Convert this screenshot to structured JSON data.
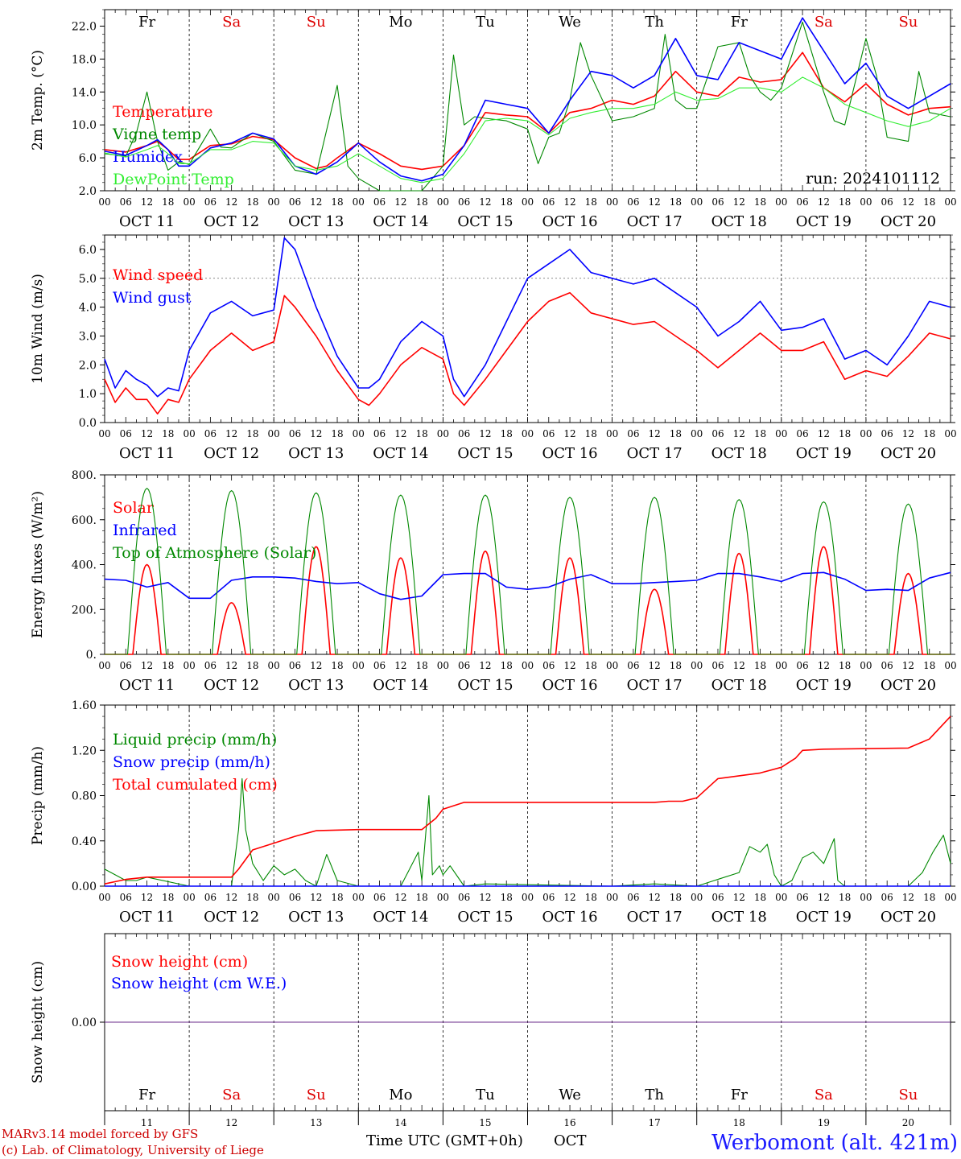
{
  "colors": {
    "red": "#ff0000",
    "green": "#008800",
    "blue": "#0000ff",
    "lightgreen": "#33ee33",
    "purple": "#6a2a8a",
    "weekend_day": "#dd0000",
    "weekday_day": "#000000"
  },
  "days_top": [
    "Fr",
    "Sa",
    "Su",
    "Mo",
    "Tu",
    "We",
    "Th",
    "Fr",
    "Sa",
    "Su"
  ],
  "weekend_flags": [
    false,
    true,
    true,
    false,
    false,
    false,
    false,
    false,
    true,
    true
  ],
  "hour_labels": [
    "00",
    "06",
    "12",
    "18"
  ],
  "last_hour_label": "00",
  "date_labels": [
    "OCT 11",
    "OCT 12",
    "OCT 13",
    "OCT 14",
    "OCT 15",
    "OCT 16",
    "OCT 17",
    "OCT 18",
    "OCT 19",
    "OCT 20"
  ],
  "bottom_day_numbers": [
    "11",
    "12",
    "13",
    "14",
    "15",
    "16",
    "17",
    "18",
    "19",
    "20"
  ],
  "run_label": "run: 2024101112",
  "footer": {
    "model_line": "MARv3.14 model forced by GFS",
    "lab_line": "(c) Lab. of Climatology, University of Liege",
    "time_axis_label": "Time UTC (GMT+0h)",
    "month_label": "OCT",
    "station": "Werbomont (alt. 421m)"
  },
  "chart_data": [
    {
      "type": "line",
      "panel": "temperature",
      "ylabel": "2m Temp. (°C)",
      "ylim": [
        2.0,
        24.0
      ],
      "yticks": [
        "2.0",
        "6.0",
        "10.0",
        "14.0",
        "18.0",
        "22.0"
      ],
      "x_unit": "hours since 2024-10-11 00 UTC",
      "xlim": [
        0,
        240
      ],
      "series": [
        {
          "name": "Temperature",
          "color": "red",
          "x": [
            0,
            6,
            12,
            15,
            18,
            21,
            24,
            30,
            36,
            42,
            48,
            54,
            60,
            63,
            66,
            72,
            78,
            84,
            90,
            96,
            102,
            108,
            114,
            120,
            126,
            132,
            138,
            144,
            150,
            156,
            162,
            168,
            174,
            180,
            186,
            192,
            198,
            204,
            210,
            216,
            222,
            228,
            234,
            240
          ],
          "values": [
            7.0,
            6.7,
            7.5,
            8.0,
            7.0,
            5.8,
            5.8,
            7.5,
            7.7,
            8.6,
            8.2,
            6.0,
            4.7,
            5.0,
            6.0,
            7.8,
            6.5,
            5.0,
            4.6,
            5.0,
            7.5,
            11.5,
            11.2,
            11.0,
            9.0,
            11.5,
            12.0,
            13.0,
            12.5,
            13.5,
            16.5,
            14.0,
            13.5,
            15.8,
            15.2,
            15.5,
            18.8,
            14.5,
            12.8,
            15.0,
            12.5,
            11.2,
            12.0,
            12.2
          ]
        },
        {
          "name": "Vigne temp",
          "color": "green",
          "x": [
            0,
            6,
            9,
            12,
            15,
            18,
            21,
            24,
            30,
            33,
            36,
            42,
            48,
            54,
            60,
            66,
            69,
            72,
            78,
            84,
            90,
            96,
            99,
            102,
            105,
            108,
            114,
            120,
            123,
            126,
            129,
            132,
            135,
            138,
            144,
            150,
            156,
            159,
            162,
            165,
            168,
            174,
            180,
            183,
            186,
            189,
            192,
            198,
            204,
            207,
            210,
            216,
            219,
            222,
            228,
            231,
            234,
            240
          ],
          "values": [
            6.5,
            6.2,
            9.0,
            14.0,
            8.0,
            4.5,
            5.5,
            5.2,
            9.5,
            7.3,
            7.2,
            9.0,
            8.0,
            4.5,
            4.0,
            14.8,
            5.0,
            3.5,
            2.0,
            1.5,
            2.0,
            5.0,
            18.5,
            10.0,
            11.0,
            10.8,
            10.5,
            9.5,
            5.3,
            8.5,
            9.0,
            13.0,
            20.0,
            16.0,
            10.5,
            11.0,
            12.0,
            21.0,
            13.0,
            12.0,
            12.0,
            19.5,
            20.0,
            16.0,
            14.0,
            13.0,
            14.5,
            22.5,
            14.0,
            10.5,
            10.0,
            20.5,
            16.0,
            8.5,
            8.0,
            16.5,
            11.5,
            11.0
          ]
        },
        {
          "name": "Humidex",
          "color": "blue",
          "x": [
            0,
            6,
            12,
            15,
            18,
            21,
            24,
            30,
            36,
            42,
            48,
            54,
            60,
            66,
            72,
            78,
            84,
            90,
            96,
            102,
            108,
            114,
            120,
            126,
            132,
            138,
            144,
            150,
            156,
            162,
            168,
            174,
            180,
            186,
            192,
            198,
            204,
            210,
            216,
            222,
            228,
            234,
            240
          ],
          "values": [
            6.8,
            6.3,
            7.5,
            8.2,
            7.0,
            5.0,
            5.0,
            7.2,
            7.8,
            9.0,
            8.3,
            5.0,
            4.0,
            5.5,
            7.8,
            5.5,
            3.8,
            3.2,
            4.0,
            7.5,
            13.0,
            12.5,
            12.0,
            9.0,
            13.0,
            16.5,
            16.0,
            14.5,
            16.0,
            20.5,
            16.0,
            15.5,
            20.0,
            19.0,
            18.0,
            23.0,
            19.0,
            15.0,
            17.5,
            13.5,
            12.0,
            13.5,
            15.0
          ]
        },
        {
          "name": "DewPoint Temp",
          "color": "lightgreen",
          "x": [
            0,
            6,
            12,
            15,
            18,
            21,
            24,
            30,
            36,
            42,
            48,
            54,
            60,
            66,
            72,
            78,
            84,
            90,
            96,
            102,
            108,
            114,
            120,
            126,
            132,
            138,
            144,
            150,
            156,
            162,
            168,
            174,
            180,
            186,
            192,
            198,
            204,
            210,
            216,
            222,
            228,
            234,
            240
          ],
          "values": [
            6.6,
            6.1,
            7.0,
            7.5,
            6.5,
            5.3,
            5.3,
            7.0,
            7.0,
            8.0,
            7.8,
            5.0,
            4.5,
            5.0,
            6.5,
            5.0,
            3.5,
            3.0,
            3.5,
            6.5,
            10.5,
            10.8,
            10.5,
            8.8,
            10.8,
            11.5,
            12.0,
            12.0,
            12.5,
            14.0,
            13.0,
            13.2,
            14.5,
            14.5,
            14.0,
            15.8,
            14.5,
            12.5,
            11.5,
            10.5,
            9.8,
            10.5,
            12.0
          ]
        }
      ]
    },
    {
      "type": "line",
      "panel": "wind",
      "ylabel": "10m Wind (m/s)",
      "ylim": [
        0.0,
        6.5
      ],
      "yticks": [
        "0.0",
        "1.0",
        "2.0",
        "3.0",
        "4.0",
        "5.0",
        "6.0"
      ],
      "reference_line": 5.0,
      "series": [
        {
          "name": "Wind speed",
          "color": "red",
          "x": [
            0,
            3,
            6,
            9,
            12,
            15,
            18,
            21,
            24,
            30,
            36,
            42,
            48,
            51,
            54,
            60,
            66,
            72,
            75,
            78,
            84,
            90,
            96,
            99,
            102,
            108,
            114,
            120,
            126,
            132,
            138,
            144,
            150,
            156,
            162,
            168,
            174,
            180,
            186,
            192,
            198,
            204,
            210,
            216,
            222,
            228,
            234,
            240
          ],
          "values": [
            1.5,
            0.7,
            1.2,
            0.8,
            0.8,
            0.3,
            0.8,
            0.7,
            1.5,
            2.5,
            3.1,
            2.5,
            2.8,
            4.4,
            4.0,
            3.0,
            1.8,
            0.8,
            0.6,
            1.0,
            2.0,
            2.6,
            2.2,
            1.0,
            0.6,
            1.5,
            2.5,
            3.5,
            4.2,
            4.5,
            3.8,
            3.6,
            3.4,
            3.5,
            3.0,
            2.5,
            1.9,
            2.5,
            3.1,
            2.5,
            2.5,
            2.8,
            1.5,
            1.8,
            1.6,
            2.3,
            3.1,
            2.9
          ]
        },
        {
          "name": "Wind gust",
          "color": "blue",
          "x": [
            0,
            3,
            6,
            9,
            12,
            15,
            18,
            21,
            24,
            30,
            36,
            42,
            48,
            51,
            54,
            60,
            66,
            72,
            75,
            78,
            84,
            90,
            96,
            99,
            102,
            108,
            114,
            120,
            126,
            132,
            138,
            144,
            150,
            156,
            162,
            168,
            174,
            180,
            186,
            192,
            198,
            204,
            210,
            216,
            222,
            228,
            234,
            240
          ],
          "values": [
            2.2,
            1.2,
            1.8,
            1.5,
            1.3,
            0.9,
            1.2,
            1.1,
            2.5,
            3.8,
            4.2,
            3.7,
            3.9,
            6.4,
            6.0,
            4.0,
            2.3,
            1.2,
            1.2,
            1.5,
            2.8,
            3.5,
            3.0,
            1.5,
            0.9,
            2.0,
            3.5,
            5.0,
            5.5,
            6.0,
            5.2,
            5.0,
            4.8,
            5.0,
            4.5,
            4.0,
            3.0,
            3.5,
            4.2,
            3.2,
            3.3,
            3.6,
            2.2,
            2.5,
            2.0,
            3.0,
            4.2,
            4.0
          ]
        }
      ]
    },
    {
      "type": "line",
      "panel": "energy",
      "ylabel": "Energy fluxes (W/m²)",
      "ylim": [
        0,
        800
      ],
      "yticks": [
        "0.",
        "200.",
        "400.",
        "600.",
        "800."
      ],
      "series": [
        {
          "name": "Solar",
          "color": "red",
          "peaks": [
            400,
            230,
            480,
            430,
            460,
            430,
            290,
            450,
            480,
            360
          ]
        },
        {
          "name": "Infrared",
          "color": "blue",
          "x": [
            0,
            6,
            12,
            18,
            24,
            30,
            36,
            42,
            48,
            54,
            60,
            66,
            72,
            78,
            84,
            90,
            96,
            102,
            108,
            114,
            120,
            126,
            132,
            138,
            144,
            150,
            156,
            162,
            168,
            174,
            180,
            186,
            192,
            198,
            204,
            210,
            216,
            222,
            228,
            234,
            240
          ],
          "values": [
            335,
            330,
            300,
            320,
            250,
            250,
            330,
            345,
            345,
            340,
            325,
            315,
            320,
            270,
            245,
            260,
            355,
            360,
            360,
            300,
            290,
            300,
            335,
            355,
            315,
            315,
            320,
            325,
            330,
            360,
            360,
            345,
            325,
            360,
            365,
            335,
            285,
            290,
            285,
            340,
            365
          ]
        },
        {
          "name": "Top of Atmosphere (Solar)",
          "color": "green",
          "peaks": [
            740,
            730,
            720,
            710,
            710,
            700,
            700,
            690,
            680,
            670
          ]
        }
      ]
    },
    {
      "type": "line",
      "panel": "precip",
      "ylabel": "Precip (mm/h)",
      "ylim": [
        0.0,
        1.6
      ],
      "yticks": [
        "0.00",
        "0.40",
        "0.80",
        "1.20",
        "1.60"
      ],
      "series": [
        {
          "name": "Liquid precip (mm/h)",
          "color": "green",
          "x": [
            0,
            3,
            6,
            9,
            12,
            24,
            36,
            38,
            39,
            40,
            42,
            45,
            48,
            51,
            54,
            57,
            60,
            63,
            66,
            72,
            84,
            89,
            90,
            92,
            93,
            95,
            96,
            98,
            102,
            108,
            144,
            156,
            168,
            180,
            183,
            186,
            188,
            190,
            192,
            195,
            198,
            201,
            204,
            207,
            208,
            210,
            216,
            228,
            232,
            235,
            238,
            240
          ],
          "values": [
            0.15,
            0.1,
            0.05,
            0.05,
            0.08,
            0.0,
            0.0,
            0.5,
            0.95,
            0.5,
            0.2,
            0.05,
            0.18,
            0.1,
            0.15,
            0.05,
            0.0,
            0.28,
            0.05,
            0.0,
            0.0,
            0.3,
            0.05,
            0.8,
            0.1,
            0.18,
            0.1,
            0.18,
            0.0,
            0.02,
            0.0,
            0.02,
            0.0,
            0.12,
            0.35,
            0.3,
            0.37,
            0.1,
            0.0,
            0.05,
            0.25,
            0.3,
            0.2,
            0.42,
            0.05,
            0.0,
            0.0,
            0.0,
            0.12,
            0.3,
            0.45,
            0.2
          ]
        },
        {
          "name": "Snow precip (mm/h)",
          "color": "blue",
          "x": [
            0,
            240
          ],
          "values": [
            0.0,
            0.0
          ]
        },
        {
          "name": "Total cumulated (cm)",
          "color": "red",
          "x": [
            0,
            6,
            12,
            24,
            36,
            38,
            42,
            48,
            54,
            60,
            72,
            84,
            90,
            94,
            96,
            102,
            108,
            144,
            156,
            160,
            164,
            168,
            174,
            186,
            192,
            196,
            198,
            204,
            228,
            234,
            240
          ],
          "values": [
            0.02,
            0.06,
            0.08,
            0.08,
            0.08,
            0.15,
            0.32,
            0.38,
            0.44,
            0.49,
            0.5,
            0.5,
            0.5,
            0.6,
            0.68,
            0.74,
            0.74,
            0.74,
            0.74,
            0.75,
            0.75,
            0.78,
            0.95,
            1.0,
            1.05,
            1.13,
            1.2,
            1.21,
            1.22,
            1.3,
            1.5
          ]
        }
      ]
    },
    {
      "type": "line",
      "panel": "snow",
      "ylabel": "Snow height (cm)",
      "yticks": [
        "0.00"
      ],
      "series": [
        {
          "name": "Snow height (cm)",
          "color": "red",
          "x": [
            0,
            240
          ],
          "values": [
            0.0,
            0.0
          ]
        },
        {
          "name": "Snow height (cm W.E.)",
          "color": "blue",
          "x": [
            0,
            240
          ],
          "values": [
            0.0,
            0.0
          ]
        }
      ]
    }
  ]
}
